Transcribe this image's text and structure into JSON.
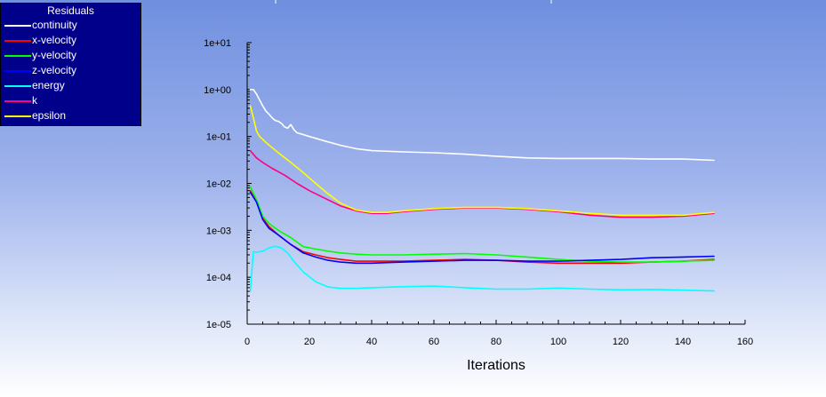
{
  "legend": {
    "title": "Residuals",
    "items": [
      {
        "label": "continuity",
        "color": "#ffffff"
      },
      {
        "label": "x-velocity",
        "color": "#ff0000"
      },
      {
        "label": "y-velocity",
        "color": "#00ff00"
      },
      {
        "label": "z-velocity",
        "color": "#0000ff"
      },
      {
        "label": "energy",
        "color": "#00ffff"
      },
      {
        "label": "k",
        "color": "#ff0080"
      },
      {
        "label": "epsilon",
        "color": "#ffff00"
      }
    ]
  },
  "chart_data": {
    "type": "line",
    "title": "",
    "xlabel": "Iterations",
    "ylabel": "",
    "xlim": [
      0,
      160
    ],
    "ylim": [
      1e-05,
      10
    ],
    "yscale": "log",
    "xticks": [
      0,
      20,
      40,
      60,
      80,
      100,
      120,
      140,
      160
    ],
    "yticks": [
      {
        "value": 1e-05,
        "label": "1e-05"
      },
      {
        "value": 0.0001,
        "label": "1e-04"
      },
      {
        "value": 0.001,
        "label": "1e-03"
      },
      {
        "value": 0.01,
        "label": "1e-02"
      },
      {
        "value": 0.1,
        "label": "1e-01"
      },
      {
        "value": 1,
        "label": "1e+00"
      },
      {
        "value": 10,
        "label": "1e+01"
      }
    ],
    "grid": false,
    "legend_position": "top-left",
    "series": [
      {
        "name": "continuity",
        "color": "#ffffff",
        "x": [
          1,
          2,
          3,
          4,
          5,
          6,
          7,
          8,
          9,
          10,
          11,
          12,
          13,
          14,
          15,
          16,
          18,
          20,
          25,
          30,
          35,
          40,
          50,
          60,
          70,
          80,
          90,
          100,
          110,
          120,
          130,
          140,
          150
        ],
        "y": [
          1,
          1,
          0.8,
          0.6,
          0.45,
          0.35,
          0.3,
          0.25,
          0.22,
          0.21,
          0.19,
          0.16,
          0.15,
          0.18,
          0.14,
          0.12,
          0.11,
          0.1,
          0.08,
          0.065,
          0.055,
          0.05,
          0.047,
          0.045,
          0.042,
          0.038,
          0.035,
          0.034,
          0.034,
          0.034,
          0.033,
          0.033,
          0.031
        ]
      },
      {
        "name": "x-velocity",
        "color": "#ff0000",
        "x": [
          1,
          3,
          5,
          7,
          10,
          14,
          18,
          22,
          26,
          30,
          35,
          40,
          50,
          60,
          70,
          80,
          90,
          100,
          110,
          120,
          130,
          140,
          150
        ],
        "y": [
          0.007,
          0.004,
          0.0018,
          0.0012,
          0.0008,
          0.0005,
          0.00035,
          0.0003,
          0.00026,
          0.00024,
          0.00022,
          0.00022,
          0.00022,
          0.00023,
          0.00024,
          0.00023,
          0.00021,
          0.0002,
          0.0002,
          0.0002,
          0.00021,
          0.00022,
          0.00024
        ]
      },
      {
        "name": "y-velocity",
        "color": "#00ff00",
        "x": [
          1,
          3,
          5,
          7,
          10,
          14,
          18,
          22,
          26,
          30,
          35,
          40,
          50,
          60,
          70,
          80,
          90,
          100,
          110,
          120,
          130,
          140,
          150
        ],
        "y": [
          0.0085,
          0.0045,
          0.002,
          0.0014,
          0.001,
          0.0007,
          0.00045,
          0.0004,
          0.00036,
          0.00033,
          0.00031,
          0.0003,
          0.0003,
          0.00031,
          0.00032,
          0.0003,
          0.00027,
          0.00024,
          0.00022,
          0.00021,
          0.00021,
          0.00022,
          0.00023
        ]
      },
      {
        "name": "z-velocity",
        "color": "#0000ff",
        "x": [
          1,
          3,
          5,
          7,
          10,
          14,
          18,
          22,
          26,
          30,
          35,
          40,
          50,
          60,
          70,
          80,
          90,
          100,
          110,
          120,
          130,
          140,
          150
        ],
        "y": [
          0.0065,
          0.004,
          0.0017,
          0.0011,
          0.0008,
          0.0005,
          0.00033,
          0.00027,
          0.00023,
          0.00021,
          0.0002,
          0.0002,
          0.00021,
          0.00022,
          0.00023,
          0.00023,
          0.00022,
          0.00022,
          0.00023,
          0.00024,
          0.00026,
          0.00027,
          0.00028
        ]
      },
      {
        "name": "energy",
        "color": "#00ffff",
        "x": [
          1,
          2,
          3,
          5,
          7,
          9,
          11,
          13,
          15,
          18,
          22,
          26,
          30,
          35,
          40,
          50,
          60,
          70,
          80,
          90,
          100,
          110,
          120,
          130,
          140,
          150
        ],
        "y": [
          5e-05,
          0.00035,
          0.00034,
          0.00036,
          0.00042,
          0.00046,
          0.00042,
          0.00033,
          0.00022,
          0.00013,
          8e-05,
          6.2e-05,
          5.8e-05,
          5.8e-05,
          6e-05,
          6.3e-05,
          6.5e-05,
          6e-05,
          5.6e-05,
          5.6e-05,
          5.9e-05,
          5.6e-05,
          5.4e-05,
          5.5e-05,
          5.3e-05,
          5.1e-05
        ]
      },
      {
        "name": "k",
        "color": "#ff0080",
        "x": [
          1,
          3,
          5,
          8,
          12,
          16,
          20,
          25,
          30,
          35,
          40,
          45,
          50,
          60,
          70,
          80,
          90,
          100,
          110,
          120,
          130,
          140,
          150
        ],
        "y": [
          0.05,
          0.035,
          0.028,
          0.021,
          0.015,
          0.01,
          0.007,
          0.0048,
          0.0033,
          0.0026,
          0.0023,
          0.0023,
          0.0025,
          0.0028,
          0.003,
          0.003,
          0.0028,
          0.0025,
          0.0021,
          0.0019,
          0.0019,
          0.002,
          0.0023
        ]
      },
      {
        "name": "epsilon",
        "color": "#ffff00",
        "x": [
          1,
          2,
          3,
          4,
          6,
          8,
          10,
          14,
          18,
          22,
          26,
          30,
          35,
          40,
          45,
          50,
          60,
          70,
          80,
          90,
          100,
          110,
          120,
          130,
          140,
          150
        ],
        "y": [
          0.45,
          0.25,
          0.13,
          0.1,
          0.075,
          0.058,
          0.045,
          0.028,
          0.017,
          0.01,
          0.006,
          0.0038,
          0.0027,
          0.0024,
          0.0024,
          0.0026,
          0.0029,
          0.0031,
          0.0031,
          0.0029,
          0.0026,
          0.0023,
          0.0021,
          0.0021,
          0.0021,
          0.0024
        ]
      }
    ]
  }
}
